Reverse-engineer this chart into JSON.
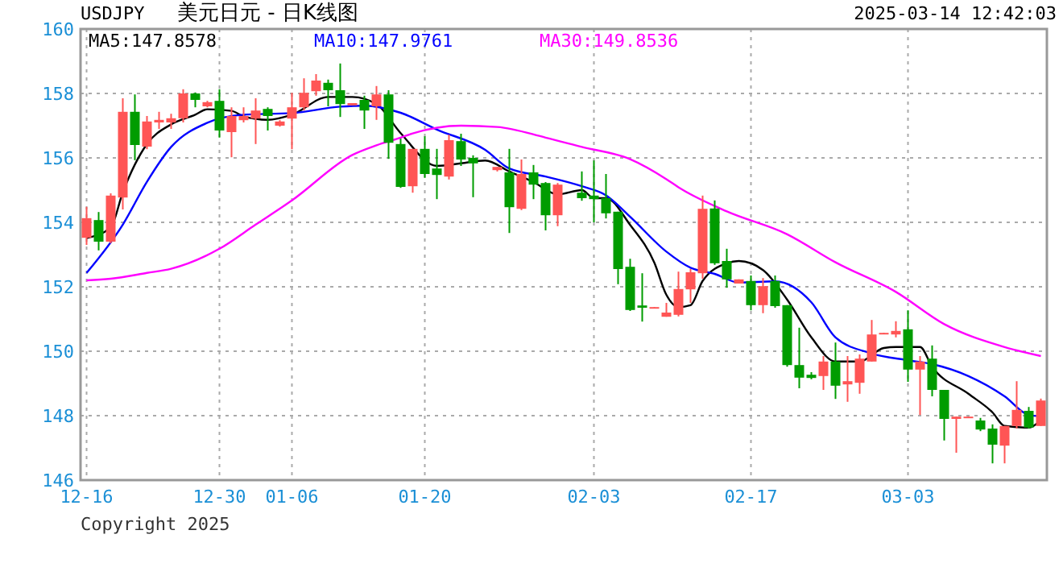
{
  "chart_data": {
    "type": "candlestick",
    "title": "美元日元 - 日K线图",
    "annotations": [
      "USDJPY",
      "2025-03-14 12:42:03",
      "Copyright 2025"
    ],
    "categories": [
      "12-16",
      null,
      null,
      null,
      null,
      null,
      null,
      null,
      null,
      null,
      null,
      "12-30",
      null,
      null,
      null,
      null,
      null,
      "01-06",
      null,
      null,
      null,
      null,
      null,
      null,
      null,
      null,
      null,
      null,
      "01-20",
      null,
      null,
      null,
      null,
      null,
      null,
      null,
      null,
      null,
      null,
      null,
      null,
      null,
      "02-03",
      null,
      null,
      null,
      null,
      null,
      null,
      null,
      null,
      null,
      null,
      null,
      null,
      "02-17",
      null,
      null,
      null,
      null,
      null,
      null,
      null,
      null,
      null,
      null,
      null,
      null,
      "03-03",
      null,
      null,
      null,
      null,
      null,
      null,
      null,
      null,
      null,
      null,
      null
    ],
    "ohlc": [
      [
        153.52,
        154.48,
        153.3,
        154.13
      ],
      [
        154.07,
        154.32,
        153.13,
        153.4
      ],
      [
        153.4,
        154.9,
        153.35,
        154.83
      ],
      [
        154.77,
        157.85,
        154.4,
        157.43
      ],
      [
        157.43,
        157.97,
        155.93,
        156.4
      ],
      [
        156.35,
        157.3,
        156.27,
        157.13
      ],
      [
        157.1,
        157.43,
        156.9,
        157.18
      ],
      [
        157.1,
        157.37,
        156.9,
        157.23
      ],
      [
        157.23,
        158.13,
        157.1,
        158.0
      ],
      [
        158.0,
        158.03,
        157.57,
        157.8
      ],
      [
        157.6,
        157.77,
        157.57,
        157.73
      ],
      [
        157.77,
        158.13,
        156.63,
        156.85
      ],
      [
        156.8,
        157.57,
        156.02,
        157.3
      ],
      [
        157.17,
        157.57,
        157.1,
        157.3
      ],
      [
        157.22,
        157.85,
        156.43,
        157.47
      ],
      [
        157.52,
        157.57,
        156.85,
        157.3
      ],
      [
        157.0,
        157.17,
        156.97,
        157.13
      ],
      [
        157.22,
        158.02,
        156.27,
        157.57
      ],
      [
        157.57,
        158.47,
        157.47,
        158.02
      ],
      [
        158.07,
        158.6,
        157.93,
        158.4
      ],
      [
        158.33,
        158.43,
        157.6,
        158.1
      ],
      [
        158.1,
        158.93,
        157.27,
        157.67
      ],
      [
        157.63,
        157.7,
        157.63,
        157.7
      ],
      [
        157.8,
        157.93,
        156.9,
        157.47
      ],
      [
        157.6,
        158.23,
        157.18,
        157.97
      ],
      [
        157.97,
        158.1,
        155.97,
        156.47
      ],
      [
        156.43,
        156.6,
        155.07,
        155.1
      ],
      [
        155.12,
        156.28,
        154.92,
        156.28
      ],
      [
        156.28,
        156.67,
        155.38,
        155.5
      ],
      [
        155.67,
        156.28,
        154.72,
        155.47
      ],
      [
        155.42,
        156.72,
        155.33,
        156.55
      ],
      [
        156.52,
        156.75,
        155.75,
        155.95
      ],
      [
        156.0,
        156.08,
        154.78,
        155.83
      ],
      null,
      [
        155.62,
        155.72,
        155.58,
        155.72
      ],
      [
        155.55,
        156.28,
        153.67,
        154.47
      ],
      [
        154.42,
        155.95,
        154.38,
        155.5
      ],
      [
        155.55,
        155.78,
        154.72,
        155.17
      ],
      [
        155.22,
        155.25,
        153.75,
        154.22
      ],
      [
        154.22,
        155.22,
        153.88,
        155.17
      ],
      null,
      [
        154.92,
        155.58,
        154.67,
        154.75
      ],
      [
        154.83,
        155.92,
        154.0,
        154.72
      ],
      [
        154.75,
        155.5,
        154.12,
        154.28
      ],
      [
        154.33,
        154.33,
        152.08,
        152.55
      ],
      [
        152.62,
        152.87,
        151.25,
        151.28
      ],
      [
        151.42,
        152.42,
        150.92,
        151.35
      ],
      [
        151.33,
        151.37,
        151.33,
        151.37
      ],
      [
        151.07,
        151.5,
        151.07,
        151.2
      ],
      [
        151.13,
        152.47,
        151.08,
        151.93
      ],
      [
        151.92,
        152.55,
        151.5,
        152.45
      ],
      [
        152.42,
        154.83,
        152.25,
        154.42
      ],
      [
        154.43,
        154.68,
        152.68,
        152.73
      ],
      [
        152.8,
        153.18,
        151.97,
        152.23
      ],
      [
        152.1,
        152.23,
        152.1,
        152.23
      ],
      [
        152.18,
        152.35,
        151.27,
        151.43
      ],
      [
        151.43,
        152.27,
        151.18,
        152.02
      ],
      [
        152.18,
        152.35,
        151.35,
        151.4
      ],
      [
        151.43,
        151.43,
        149.52,
        149.57
      ],
      [
        149.57,
        150.73,
        148.85,
        149.18
      ],
      [
        149.27,
        149.35,
        149.13,
        149.17
      ],
      [
        149.23,
        149.85,
        148.8,
        149.68
      ],
      [
        149.68,
        150.27,
        148.52,
        148.93
      ],
      [
        148.97,
        149.85,
        148.43,
        149.07
      ],
      [
        149.02,
        149.9,
        148.68,
        149.77
      ],
      [
        149.68,
        150.97,
        149.68,
        150.52
      ],
      [
        150.53,
        150.57,
        150.53,
        150.57
      ],
      [
        150.52,
        150.93,
        150.43,
        150.63
      ],
      [
        150.68,
        151.27,
        149.05,
        149.43
      ],
      [
        149.43,
        149.85,
        148.02,
        149.68
      ],
      [
        149.77,
        150.18,
        148.6,
        148.8
      ],
      [
        148.8,
        148.8,
        147.23,
        147.9
      ],
      [
        147.9,
        147.97,
        146.85,
        147.97
      ],
      [
        147.93,
        147.97,
        147.93,
        147.97
      ],
      [
        147.85,
        147.93,
        147.52,
        147.57
      ],
      [
        147.6,
        147.73,
        146.52,
        147.1
      ],
      [
        147.07,
        147.68,
        146.52,
        147.68
      ],
      [
        147.68,
        149.07,
        147.6,
        148.18
      ],
      [
        148.15,
        148.27,
        147.6,
        147.63
      ],
      [
        147.68,
        148.53,
        147.68,
        148.47
      ]
    ],
    "colors": [
      "#ff5555",
      "#009c00",
      "#ff5555",
      "#ff5555",
      "#009c00",
      "#ff5555",
      "#ff5555",
      "#ff5555",
      "#ff5555",
      "#009c00",
      "#ff5555",
      "#009c00",
      "#ff5555",
      "#ff5555",
      "#ff5555",
      "#009c00",
      "#ff5555",
      "#ff5555",
      "#ff5555",
      "#ff5555",
      "#009c00",
      "#009c00",
      "#ff5555",
      "#009c00",
      "#ff5555",
      "#009c00",
      "#009c00",
      "#ff5555",
      "#009c00",
      "#009c00",
      "#ff5555",
      "#009c00",
      "#009c00",
      null,
      "#ff5555",
      "#009c00",
      "#ff5555",
      "#009c00",
      "#009c00",
      "#ff5555",
      null,
      "#009c00",
      "#009c00",
      "#009c00",
      "#009c00",
      "#009c00",
      "#009c00",
      "#ff5555",
      "#ff5555",
      "#ff5555",
      "#ff5555",
      "#ff5555",
      "#009c00",
      "#009c00",
      "#ff5555",
      "#009c00",
      "#ff5555",
      "#009c00",
      "#009c00",
      "#009c00",
      "#009c00",
      "#ff5555",
      "#009c00",
      "#ff5555",
      "#ff5555",
      "#ff5555",
      "#ff5555",
      "#ff5555",
      "#009c00",
      "#ff5555",
      "#009c00",
      "#009c00",
      "#ff5555",
      "#ff5555",
      "#009c00",
      "#009c00",
      "#ff5555",
      "#ff5555",
      "#009c00",
      "#ff5555"
    ],
    "series": [
      {
        "name": "MA5:147.8578",
        "type": "line",
        "color": "#000000",
        "values": [
          153.51,
          null,
          153.84,
          154.93,
          null,
          156.43,
          null,
          157.04,
          null,
          157.34,
          157.51,
          null,
          157.46,
          157.29,
          null,
          157.18,
          null,
          157.34,
          null,
          null,
          157.89,
          null,
          157.89,
          null,
          157.67,
          null,
          156.77,
          null,
          null,
          155.75,
          null,
          155.83,
          null,
          155.92,
          null,
          155.58,
          null,
          155.25,
          null,
          154.87,
          null,
          155.0,
          154.75,
          154.75,
          null,
          153.92,
          null,
          152.75,
          151.75,
          151.37,
          151.43,
          152.18,
          null,
          152.73,
          152.8,
          null,
          152.52,
          null,
          151.6,
          null,
          150.43,
          null,
          149.68,
          null,
          149.68,
          null,
          150.1,
          150.13,
          null,
          150.13,
          149.52,
          null,
          null,
          148.68,
          null,
          148.1,
          147.68,
          null,
          147.63,
          147.86
        ]
      },
      {
        "name": "MA10:147.9761",
        "type": "line",
        "color": "#0000ff",
        "values": [
          152.43,
          null,
          null,
          153.93,
          null,
          155.26,
          null,
          156.34,
          null,
          null,
          157.09,
          null,
          null,
          157.34,
          null,
          null,
          null,
          157.39,
          null,
          null,
          null,
          157.59,
          null,
          157.62,
          null,
          null,
          157.4,
          null,
          null,
          156.88,
          null,
          null,
          null,
          156.25,
          null,
          155.67,
          null,
          null,
          155.42,
          null,
          null,
          155.12,
          null,
          154.84,
          null,
          154.17,
          null,
          null,
          153.09,
          null,
          152.59,
          null,
          152.4,
          null,
          152.13,
          null,
          null,
          152.17,
          null,
          null,
          151.52,
          null,
          150.43,
          null,
          null,
          149.93,
          null,
          null,
          149.72,
          null,
          149.6,
          null,
          null,
          149.23,
          null,
          null,
          148.6,
          null,
          148.02,
          147.98
        ]
      },
      {
        "name": "MA30:149.8536",
        "type": "line",
        "color": "#ff00ff",
        "values": [
          152.2,
          null,
          152.25,
          null,
          null,
          152.43,
          null,
          152.56,
          null,
          null,
          null,
          153.18,
          null,
          null,
          153.93,
          null,
          null,
          154.68,
          null,
          null,
          null,
          null,
          156.09,
          null,
          156.39,
          null,
          156.63,
          156.76,
          null,
          null,
          null,
          157.0,
          null,
          null,
          156.96,
          null,
          null,
          null,
          156.63,
          null,
          null,
          156.34,
          null,
          null,
          null,
          155.96,
          null,
          null,
          155.34,
          155.09,
          null,
          null,
          null,
          154.34,
          null,
          null,
          null,
          null,
          153.63,
          null,
          null,
          null,
          152.76,
          null,
          null,
          null,
          null,
          151.84,
          null,
          null,
          null,
          150.84,
          null,
          null,
          null,
          null,
          150.13,
          null,
          null,
          149.85
        ]
      }
    ],
    "ylim": [
      146,
      160
    ],
    "yticks": [
      146,
      148,
      150,
      152,
      154,
      156,
      158,
      160
    ],
    "grid": true,
    "legend": "top left"
  }
}
